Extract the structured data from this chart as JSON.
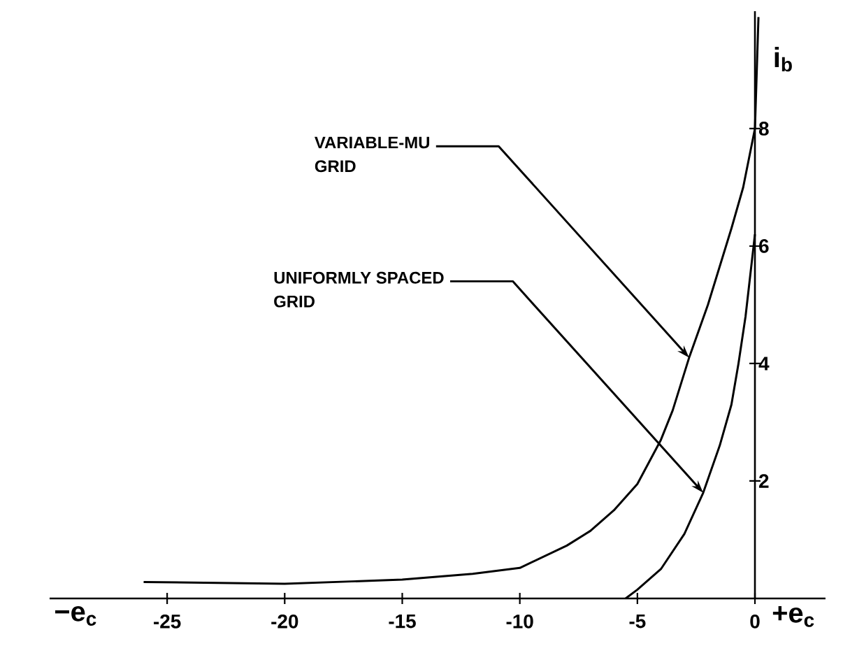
{
  "chart_data": {
    "type": "line",
    "xlabel": "+e$_{c}$",
    "ylabel": "i$_{b}$",
    "xlim": [
      -30,
      3
    ],
    "ylim": [
      0,
      10
    ],
    "xticks": [
      -25,
      -20,
      -15,
      -10,
      -5,
      0
    ],
    "yticks": [
      2,
      4,
      6,
      8
    ],
    "grid": false,
    "marker": "none",
    "line_style": "solid",
    "annotations": [
      "−e$_{c}$",
      {
        "text": "VARIABLE-MU GRID",
        "x": -2.8,
        "y": 4.1
      },
      {
        "text": "UNIFORMLY SPACED GRID",
        "x": -2.2,
        "y": 1.8
      }
    ],
    "series": [
      {
        "color": "#000000",
        "x": [
          -26,
          -20,
          -15,
          -12,
          -10,
          -8,
          -7,
          -6,
          -5,
          -4,
          -3.5,
          -2.8,
          -2,
          -1,
          -0.5,
          0,
          0.15
        ],
        "values": [
          0.28,
          0.25,
          0.32,
          0.42,
          0.52,
          0.9,
          1.15,
          1.5,
          1.95,
          2.7,
          3.2,
          4.1,
          5.0,
          6.3,
          7.0,
          8.0,
          9.9
        ]
      },
      {
        "color": "#000000",
        "x": [
          -5.5,
          -5,
          -4,
          -3,
          -2.2,
          -1.5,
          -1,
          -0.7,
          -0.4,
          -0.2,
          0
        ],
        "values": [
          0,
          0.15,
          0.5,
          1.1,
          1.8,
          2.6,
          3.3,
          4.0,
          4.8,
          5.5,
          6.2
        ]
      }
    ]
  }
}
